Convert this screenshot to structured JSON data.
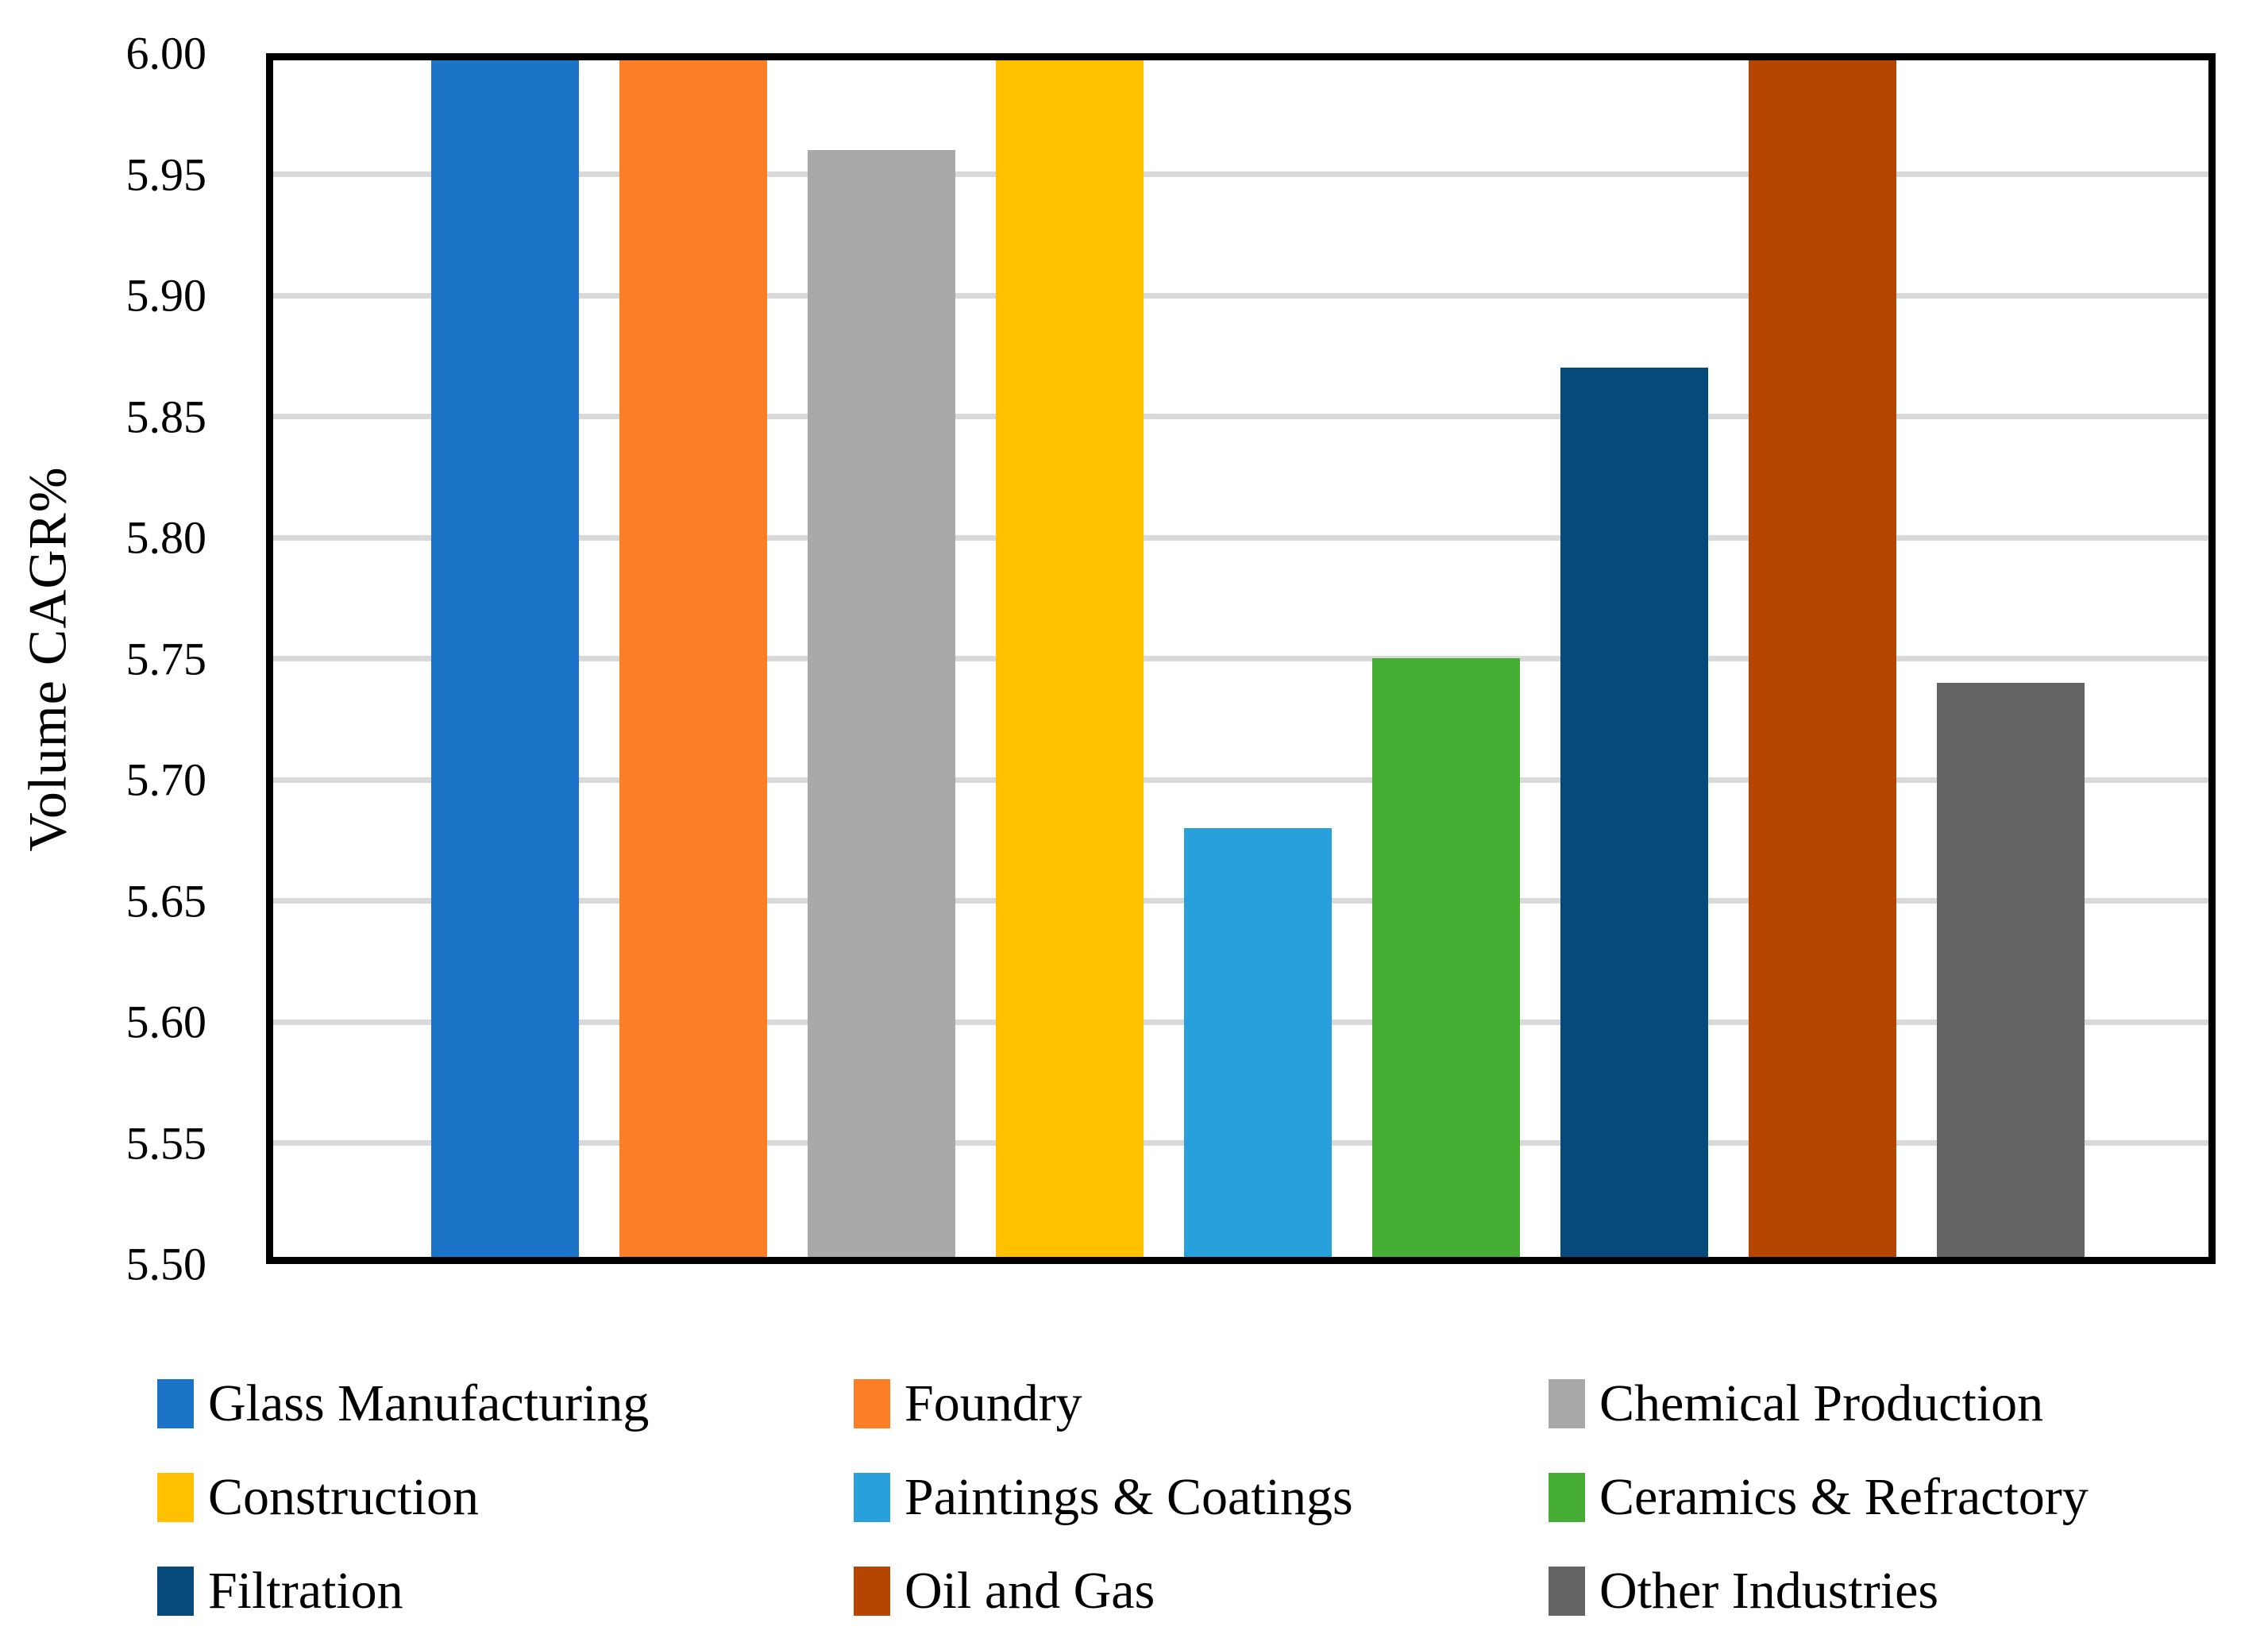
{
  "chart_data": {
    "type": "bar",
    "title": "",
    "xlabel": "",
    "ylabel": "Volume CAGR%",
    "ylim": [
      5.5,
      6.0
    ],
    "ytick_step": 0.05,
    "ytick_labels": [
      "6.00",
      "5.95",
      "5.90",
      "5.85",
      "5.80",
      "5.75",
      "5.70",
      "5.65",
      "5.60",
      "5.55",
      "5.50"
    ],
    "grid": "horizontal",
    "gridline_color": "#D9D9D9",
    "frame_color": "#000000",
    "legend_position": "bottom",
    "categories": [
      "Glass Manufacturing",
      "Foundry",
      "Chemical Production",
      "Construction",
      "Paintings & Coatings",
      "Ceramics & Refractory",
      "Filtration",
      "Oil and Gas",
      "Other Industries"
    ],
    "values": [
      6.0,
      6.0,
      5.96,
      6.0,
      5.68,
      5.75,
      5.87,
      6.0,
      5.74
    ],
    "colors": [
      "#1B74C8",
      "#FC7E26",
      "#A9A9A9",
      "#FFC000",
      "#28A0DC",
      "#45AC34",
      "#064A7C",
      "#B44602",
      "#646464"
    ]
  }
}
